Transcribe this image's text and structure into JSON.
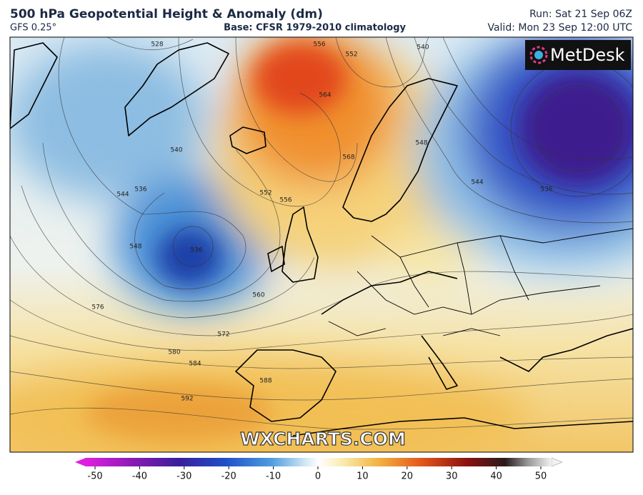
{
  "header": {
    "title": "500 hPa Geopotential Height & Anomaly (dm)",
    "model": "GFS 0.25°",
    "base": "Base: CFSR 1979-2010 climatology",
    "run": "Run: Sat 21 Sep 06Z",
    "valid": "Valid: Mon 23 Sep 12:00 UTC",
    "logo": "MetDesk",
    "watermark": "WXCHARTS.COM"
  },
  "contours": {
    "labels": [
      528,
      556,
      552,
      540,
      564,
      568,
      548,
      540,
      544,
      536,
      552,
      556,
      544,
      536,
      548,
      560,
      576,
      572,
      580,
      584,
      588,
      592,
      536
    ]
  },
  "colorbar": {
    "lim": [
      -50,
      50
    ],
    "ticks": [
      -50,
      -40,
      -30,
      -20,
      -10,
      0,
      10,
      20,
      30,
      40,
      50
    ]
  }
}
